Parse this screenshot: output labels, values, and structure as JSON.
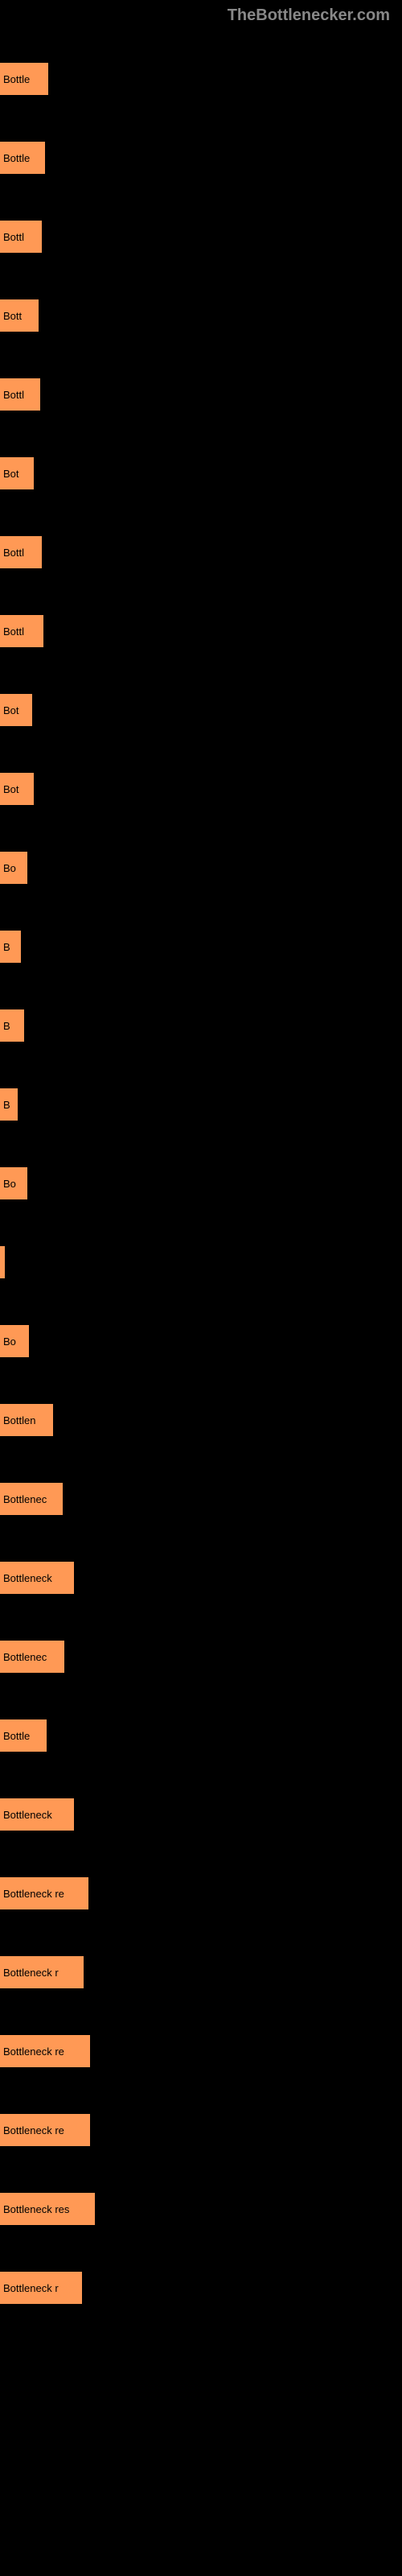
{
  "header": {
    "text": "TheBottlenecker.com"
  },
  "chart": {
    "background_color": "#000000",
    "bar_color": "#ff9955",
    "text_color": "#000000",
    "bars": [
      {
        "label": "Bottle",
        "width": 60
      },
      {
        "label": "Bottle",
        "width": 56
      },
      {
        "label": "Bottl",
        "width": 52
      },
      {
        "label": "Bott",
        "width": 48
      },
      {
        "label": "Bottl",
        "width": 50
      },
      {
        "label": "Bot",
        "width": 42
      },
      {
        "label": "Bottl",
        "width": 52
      },
      {
        "label": "Bottl",
        "width": 54
      },
      {
        "label": "Bot",
        "width": 40
      },
      {
        "label": "Bot",
        "width": 42
      },
      {
        "label": "Bo",
        "width": 34
      },
      {
        "label": "B",
        "width": 26
      },
      {
        "label": "B",
        "width": 30
      },
      {
        "label": "B",
        "width": 22
      },
      {
        "label": "Bo",
        "width": 34
      },
      {
        "label": "",
        "width": 6
      },
      {
        "label": "Bo",
        "width": 36
      },
      {
        "label": "Bottlen",
        "width": 66
      },
      {
        "label": "Bottlenec",
        "width": 78
      },
      {
        "label": "Bottleneck",
        "width": 92
      },
      {
        "label": "Bottlenec",
        "width": 80
      },
      {
        "label": "Bottle",
        "width": 58
      },
      {
        "label": "Bottleneck",
        "width": 92
      },
      {
        "label": "Bottleneck re",
        "width": 110
      },
      {
        "label": "Bottleneck r",
        "width": 104
      },
      {
        "label": "Bottleneck re",
        "width": 112
      },
      {
        "label": "Bottleneck re",
        "width": 112
      },
      {
        "label": "Bottleneck res",
        "width": 118
      },
      {
        "label": "Bottleneck r",
        "width": 102
      }
    ]
  }
}
